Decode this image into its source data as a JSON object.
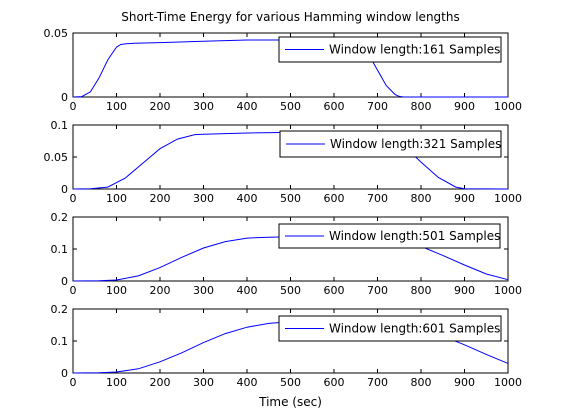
{
  "chart_data": {
    "type": "line",
    "title": "Short-Time Energy for various Hamming window lengths",
    "xlabel": "Time (sec)",
    "xlim": [
      0,
      1000
    ],
    "xticks": [
      0,
      100,
      200,
      300,
      400,
      500,
      600,
      700,
      800,
      900,
      1000
    ],
    "line_color": "#0000ff",
    "legend_placement": "top-right",
    "subplots": [
      {
        "ylim": [
          0,
          0.05
        ],
        "yticks": [
          "0",
          "0.05"
        ],
        "series": [
          {
            "name": "Window length:161 Samples",
            "x": [
              0,
              20,
              40,
              60,
              80,
              100,
              110,
              120,
              140,
              200,
              300,
              400,
              450,
              500,
              550,
              600,
              650,
              680,
              700,
              720,
              740,
              750,
              760,
              800,
              900,
              1000
            ],
            "y": [
              0,
              0.0003,
              0.004,
              0.015,
              0.029,
              0.039,
              0.041,
              0.0415,
              0.042,
              0.0425,
              0.0435,
              0.0445,
              0.0445,
              0.0445,
              0.0445,
              0.0443,
              0.0435,
              0.033,
              0.021,
              0.009,
              0.002,
              0.0005,
              0,
              0,
              0,
              0
            ]
          }
        ]
      },
      {
        "ylim": [
          0,
          0.1
        ],
        "yticks": [
          "0",
          "0.05",
          "0.1"
        ],
        "series": [
          {
            "name": "Window length:321 Samples",
            "x": [
              0,
              40,
              80,
              120,
              160,
              200,
              240,
              280,
              300,
              400,
              500,
              600,
              650,
              700,
              720,
              760,
              800,
              840,
              880,
              900,
              1000
            ],
            "y": [
              0,
              0.0003,
              0.003,
              0.017,
              0.04,
              0.063,
              0.078,
              0.085,
              0.0855,
              0.0875,
              0.0885,
              0.0885,
              0.0885,
              0.0875,
              0.084,
              0.068,
              0.042,
              0.018,
              0.003,
              0.0005,
              0
            ]
          }
        ]
      },
      {
        "ylim": [
          0,
          0.2
        ],
        "yticks": [
          "0",
          "0.1",
          "0.2"
        ],
        "series": [
          {
            "name": "Window length:501 Samples",
            "x": [
              0,
              60,
              100,
              150,
              200,
              250,
              300,
              350,
              400,
              450,
              500,
              550,
              600,
              700,
              750,
              800,
              850,
              900,
              950,
              1000
            ],
            "y": [
              0,
              0.0005,
              0.003,
              0.016,
              0.042,
              0.074,
              0.103,
              0.123,
              0.134,
              0.137,
              0.138,
              0.138,
              0.138,
              0.136,
              0.128,
              0.108,
              0.08,
              0.05,
              0.022,
              0.004
            ]
          }
        ]
      },
      {
        "ylim": [
          0,
          0.2
        ],
        "yticks": [
          "0",
          "0.1",
          "0.2"
        ],
        "series": [
          {
            "name": "Window length:601 Samples",
            "x": [
              0,
              60,
              100,
              150,
              200,
              250,
              300,
              350,
              400,
              450,
              480,
              500,
              550,
              600,
              700,
              750,
              800,
              850,
              900,
              950,
              1000
            ],
            "y": [
              0,
              0.0008,
              0.003,
              0.013,
              0.035,
              0.063,
              0.095,
              0.123,
              0.143,
              0.155,
              0.158,
              0.159,
              0.159,
              0.159,
              0.158,
              0.152,
              0.138,
              0.115,
              0.088,
              0.058,
              0.03
            ]
          }
        ]
      }
    ]
  }
}
